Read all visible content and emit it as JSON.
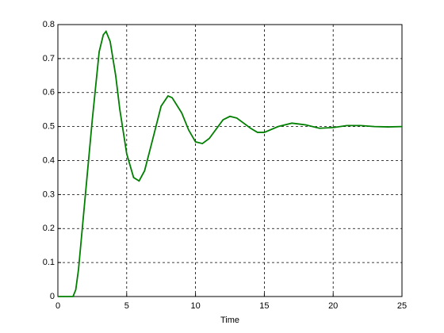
{
  "chart_data": {
    "type": "line",
    "x_label": "Time",
    "series": [
      {
        "color": "#007f00",
        "x": [
          0,
          1.1,
          1.3,
          1.5,
          2,
          2.5,
          3,
          3.3,
          3.5,
          3.8,
          4.2,
          4.5,
          5,
          5.5,
          5.9,
          6.3,
          7,
          7.5,
          8,
          8.3,
          9,
          9.5,
          10,
          10.5,
          11,
          12,
          12.5,
          13,
          14,
          14.5,
          15,
          16,
          17,
          18,
          19,
          20,
          21,
          22,
          23,
          24,
          25
        ],
        "values": [
          0,
          0,
          0.02,
          0.08,
          0.3,
          0.52,
          0.72,
          0.77,
          0.78,
          0.75,
          0.65,
          0.55,
          0.42,
          0.35,
          0.34,
          0.37,
          0.48,
          0.56,
          0.59,
          0.585,
          0.54,
          0.49,
          0.455,
          0.45,
          0.465,
          0.52,
          0.53,
          0.525,
          0.495,
          0.483,
          0.483,
          0.5,
          0.51,
          0.505,
          0.495,
          0.497,
          0.503,
          0.503,
          0.5,
          0.499,
          0.5
        ]
      }
    ],
    "xlim": [
      0,
      25
    ],
    "xticks": [
      0,
      5,
      10,
      15,
      20,
      25
    ],
    "ylim": [
      0,
      0.8
    ],
    "yticks": [
      0,
      0.1,
      0.2,
      0.3,
      0.4,
      0.5,
      0.6,
      0.7,
      0.8
    ],
    "grid": true
  }
}
